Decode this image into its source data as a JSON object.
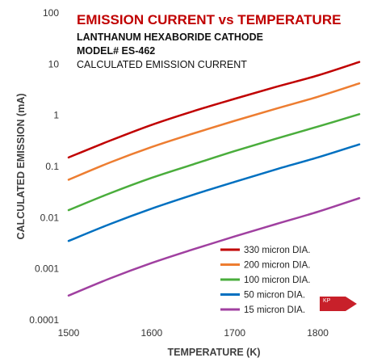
{
  "chart_data": {
    "type": "line",
    "title": "EMISSION CURRENT vs TEMPERATURE",
    "subtitles": [
      "LANTHANUM HEXABORIDE CATHODE",
      "MODEL# ES-462",
      "CALCULATED EMISSION CURRENT"
    ],
    "xlabel": "TEMPERATURE (K)",
    "ylabel": "CALCULATED EMISSION (mA)",
    "xlim": [
      1500,
      1850
    ],
    "ylim": [
      0.0001,
      100
    ],
    "yscale": "log",
    "x_ticks": [
      1500,
      1600,
      1700,
      1800
    ],
    "x_tick_labels": [
      "1500",
      "1600",
      "1700",
      "1800"
    ],
    "y_ticks": [
      0.0001,
      0.001,
      0.01,
      0.1,
      1,
      10,
      100
    ],
    "y_tick_labels": [
      "0.0001",
      "0.001",
      "0.01",
      "0.1",
      "1",
      "10",
      "100"
    ],
    "grid": false,
    "legend_position": "bottom-right",
    "x": [
      1500,
      1550,
      1600,
      1650,
      1700,
      1750,
      1800,
      1850
    ],
    "series": [
      {
        "name": "330 micron DIA.",
        "color": "#c00000",
        "values": [
          0.15,
          0.32,
          0.65,
          1.2,
          2.1,
          3.6,
          6.0,
          11.0
        ]
      },
      {
        "name": "200 micron DIA.",
        "color": "#ed7d31",
        "values": [
          0.055,
          0.12,
          0.24,
          0.44,
          0.78,
          1.35,
          2.3,
          4.2
        ]
      },
      {
        "name": "100 micron DIA.",
        "color": "#4aad3c",
        "values": [
          0.014,
          0.03,
          0.06,
          0.11,
          0.2,
          0.35,
          0.6,
          1.05
        ]
      },
      {
        "name": "50 micron DIA.",
        "color": "#0070c0",
        "values": [
          0.0035,
          0.0075,
          0.015,
          0.028,
          0.05,
          0.088,
          0.15,
          0.27
        ]
      },
      {
        "name": "15 micron DIA.",
        "color": "#a040a0",
        "values": [
          0.0003,
          0.00065,
          0.0013,
          0.0024,
          0.0043,
          0.0075,
          0.013,
          0.024
        ]
      }
    ]
  },
  "logo": {
    "text": "KP",
    "color": "#c8202a"
  }
}
